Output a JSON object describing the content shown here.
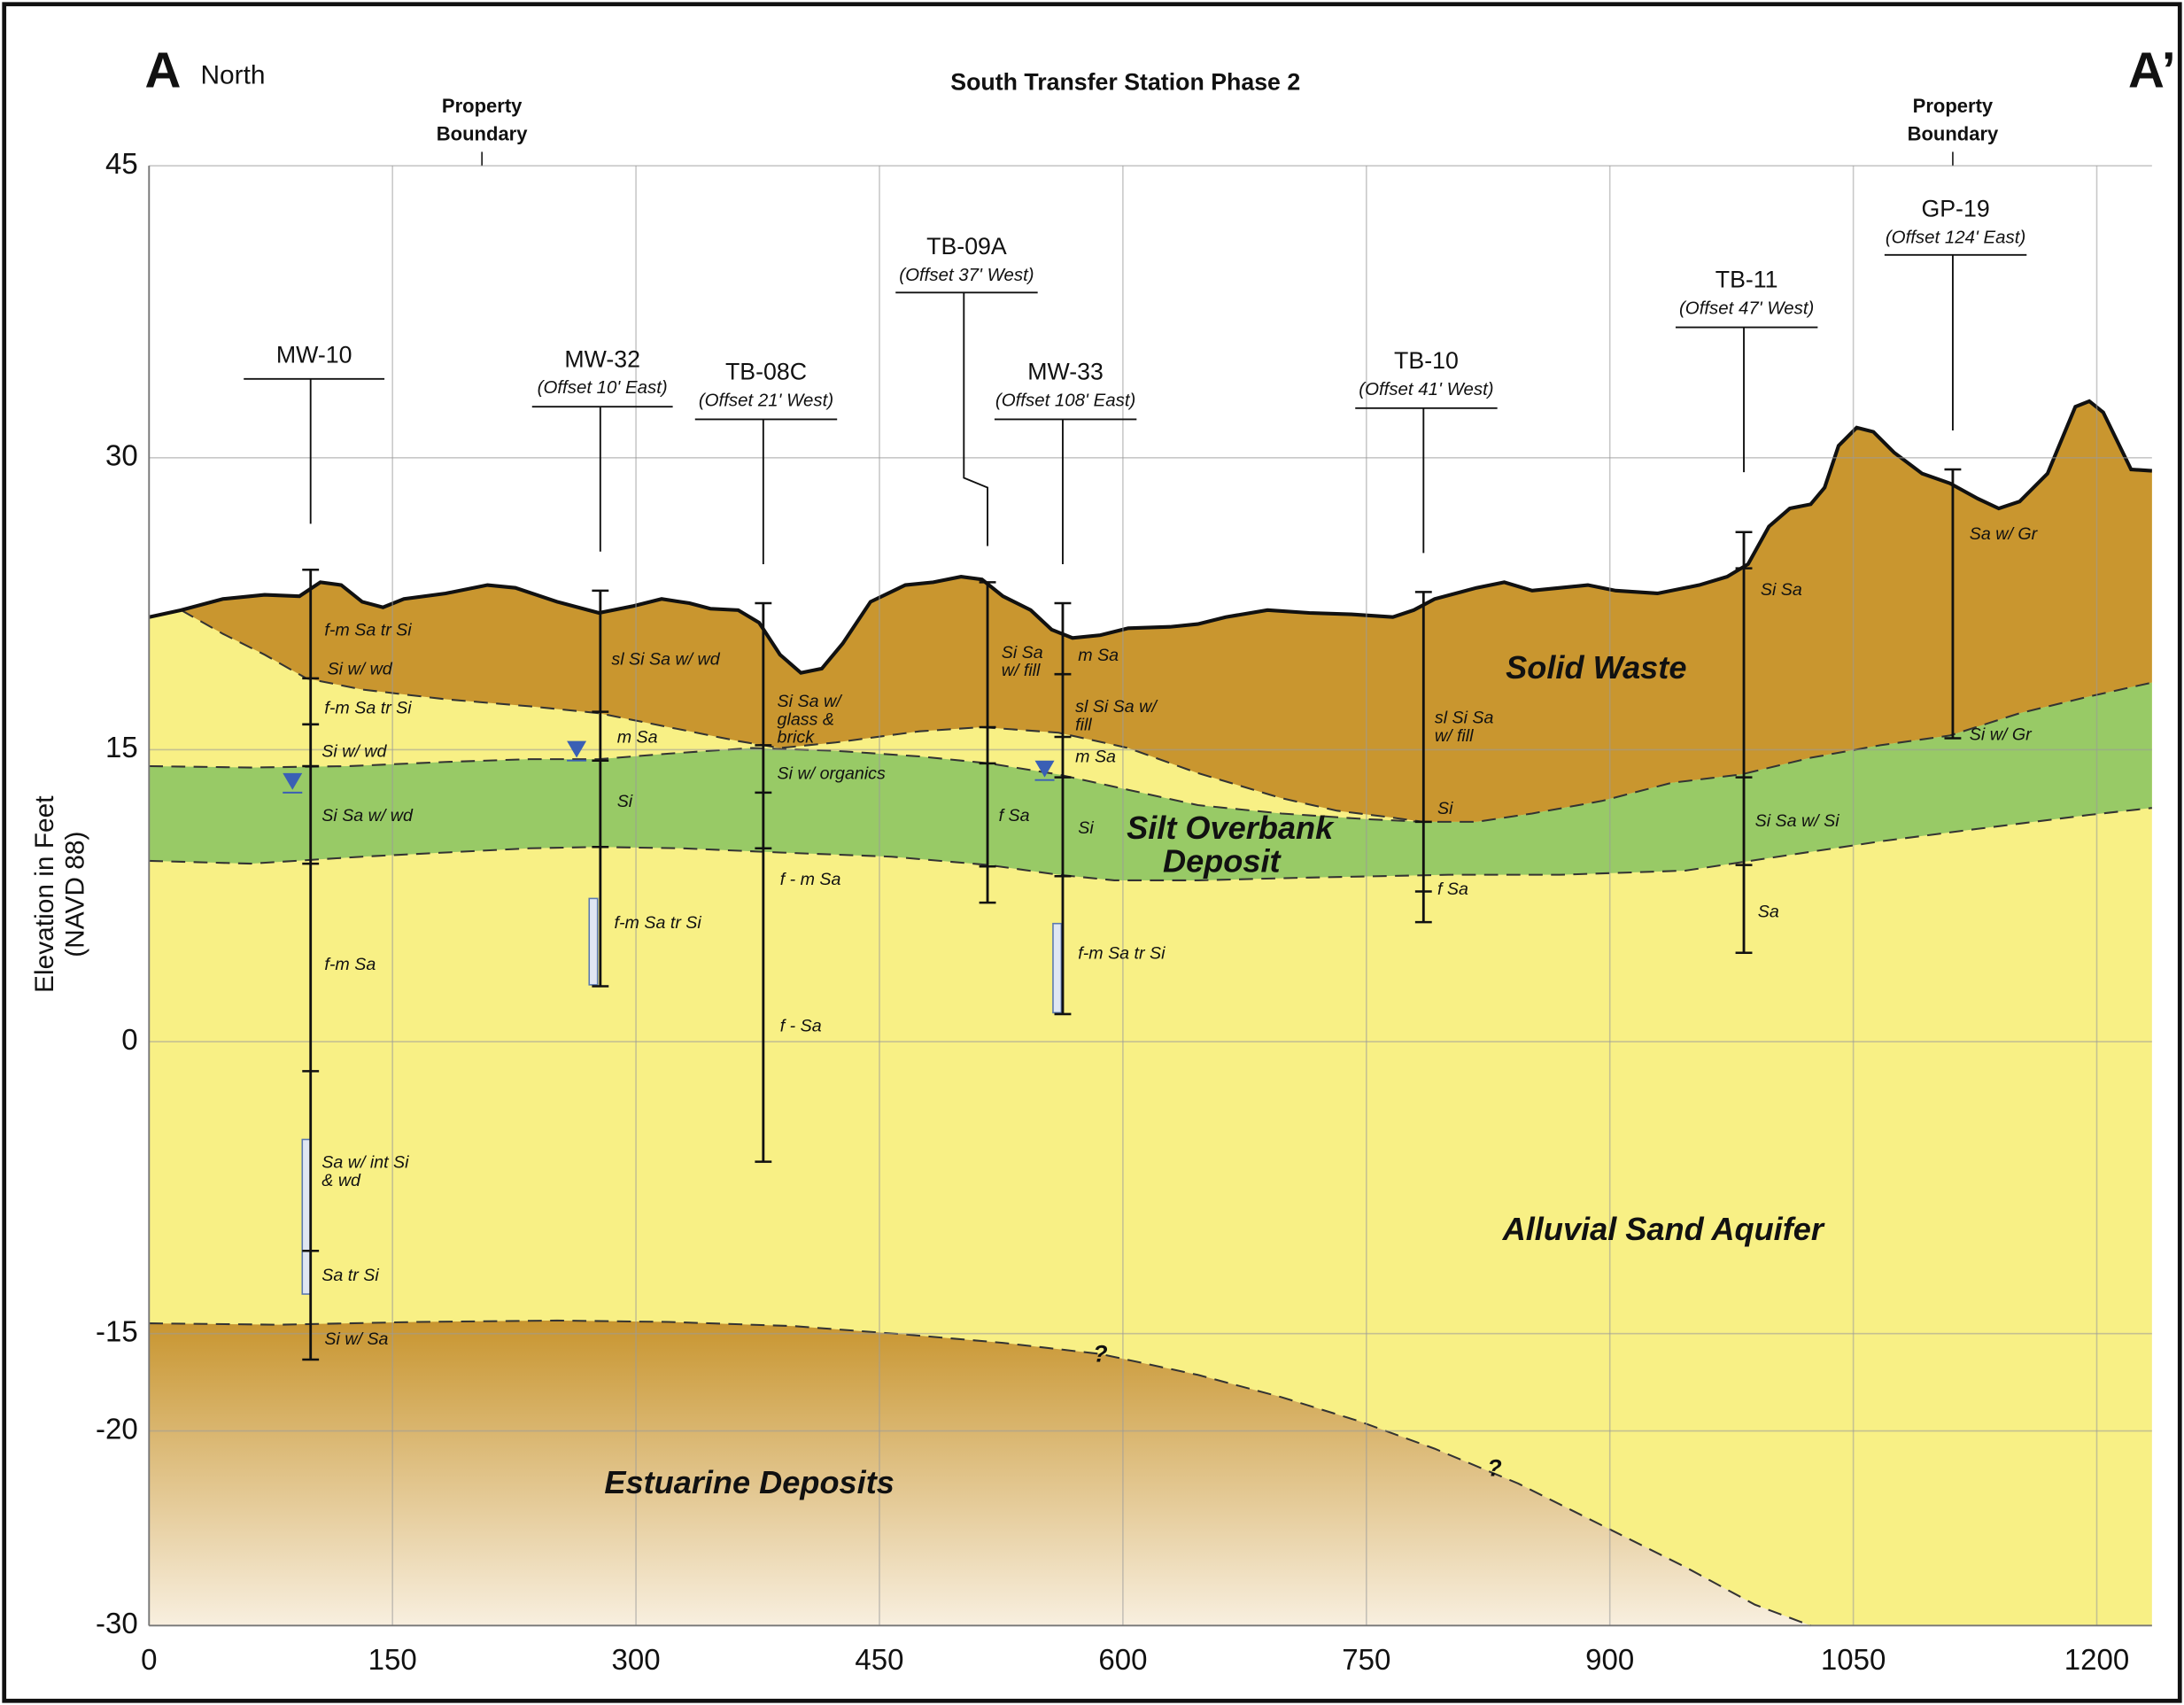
{
  "header": {
    "section_start": "A",
    "direction": "North",
    "title": "South Transfer Station Phase 2",
    "section_end": "A’",
    "property_boundaries": [
      [
        "Property",
        "Boundary"
      ],
      [
        "Property",
        "Boundary"
      ]
    ]
  },
  "axes": {
    "y_label": [
      "Elevation in Feet",
      "(NAVD 88)"
    ],
    "xlim": [
      0,
      1234
    ],
    "ylim": [
      -30,
      45
    ],
    "xticks": [
      0,
      150,
      300,
      450,
      600,
      750,
      900,
      1050,
      1200
    ],
    "yticks": [
      -30,
      -20,
      -15,
      0,
      15,
      30,
      45
    ]
  },
  "units": {
    "solid_waste": "Solid Waste",
    "silt": [
      "Silt Overbank",
      "Deposit"
    ],
    "aquifer": "Alluvial Sand Aquifer",
    "estuarine": "Estuarine Deposits",
    "uncertain": [
      "?",
      "?"
    ]
  },
  "borings": [
    {
      "name": "MW-10",
      "offset": null,
      "labels": [
        [
          "f-m Sa tr Si"
        ],
        [
          "Si w/ wd"
        ],
        [
          "f-m Sa tr Si"
        ],
        [
          "Si w/ wd"
        ],
        [
          "Si Sa w/ wd"
        ],
        [
          "f-m Sa"
        ],
        [
          "Sa w/ int Si",
          "& wd"
        ],
        [
          "Sa tr Si"
        ],
        [
          "Si w/ Sa"
        ]
      ]
    },
    {
      "name": "MW-32",
      "offset": "(Offset 10' East)",
      "labels": [
        [
          "sl Si Sa w/ wd"
        ],
        [
          "m Sa"
        ],
        [
          "Si"
        ],
        [
          "f-m Sa tr Si"
        ]
      ]
    },
    {
      "name": "TB-08C",
      "offset": "(Offset 21' West)",
      "labels": [
        [
          "Si Sa w/",
          "glass &",
          "brick"
        ],
        [
          "Si w/ organics"
        ],
        [
          "f - m Sa"
        ],
        [
          "f - Sa"
        ]
      ]
    },
    {
      "name": "TB-09A",
      "offset": "(Offset 37' West)",
      "labels": [
        [
          "Si Sa",
          "w/ fill"
        ],
        [
          "f Sa"
        ]
      ]
    },
    {
      "name": "MW-33",
      "offset": "(Offset 108' East)",
      "labels": [
        [
          "m Sa"
        ],
        [
          "sl Si Sa w/",
          "fill"
        ],
        [
          "m Sa"
        ],
        [
          "Si"
        ],
        [
          "f-m Sa tr Si"
        ]
      ]
    },
    {
      "name": "TB-10",
      "offset": "(Offset 41' West)",
      "labels": [
        [
          "sl Si Sa",
          "w/ fill"
        ],
        [
          "Si"
        ],
        [
          "f Sa"
        ]
      ]
    },
    {
      "name": "TB-11",
      "offset": "(Offset 47' West)",
      "labels": [
        [
          "Si Sa"
        ],
        [
          "Si Sa w/ Si"
        ],
        [
          "Sa"
        ]
      ]
    },
    {
      "name": "GP-19",
      "offset": "(Offset 124' East)",
      "labels": [
        [
          "Sa w/ Gr"
        ],
        [
          "Si w/ Gr"
        ]
      ]
    }
  ]
}
